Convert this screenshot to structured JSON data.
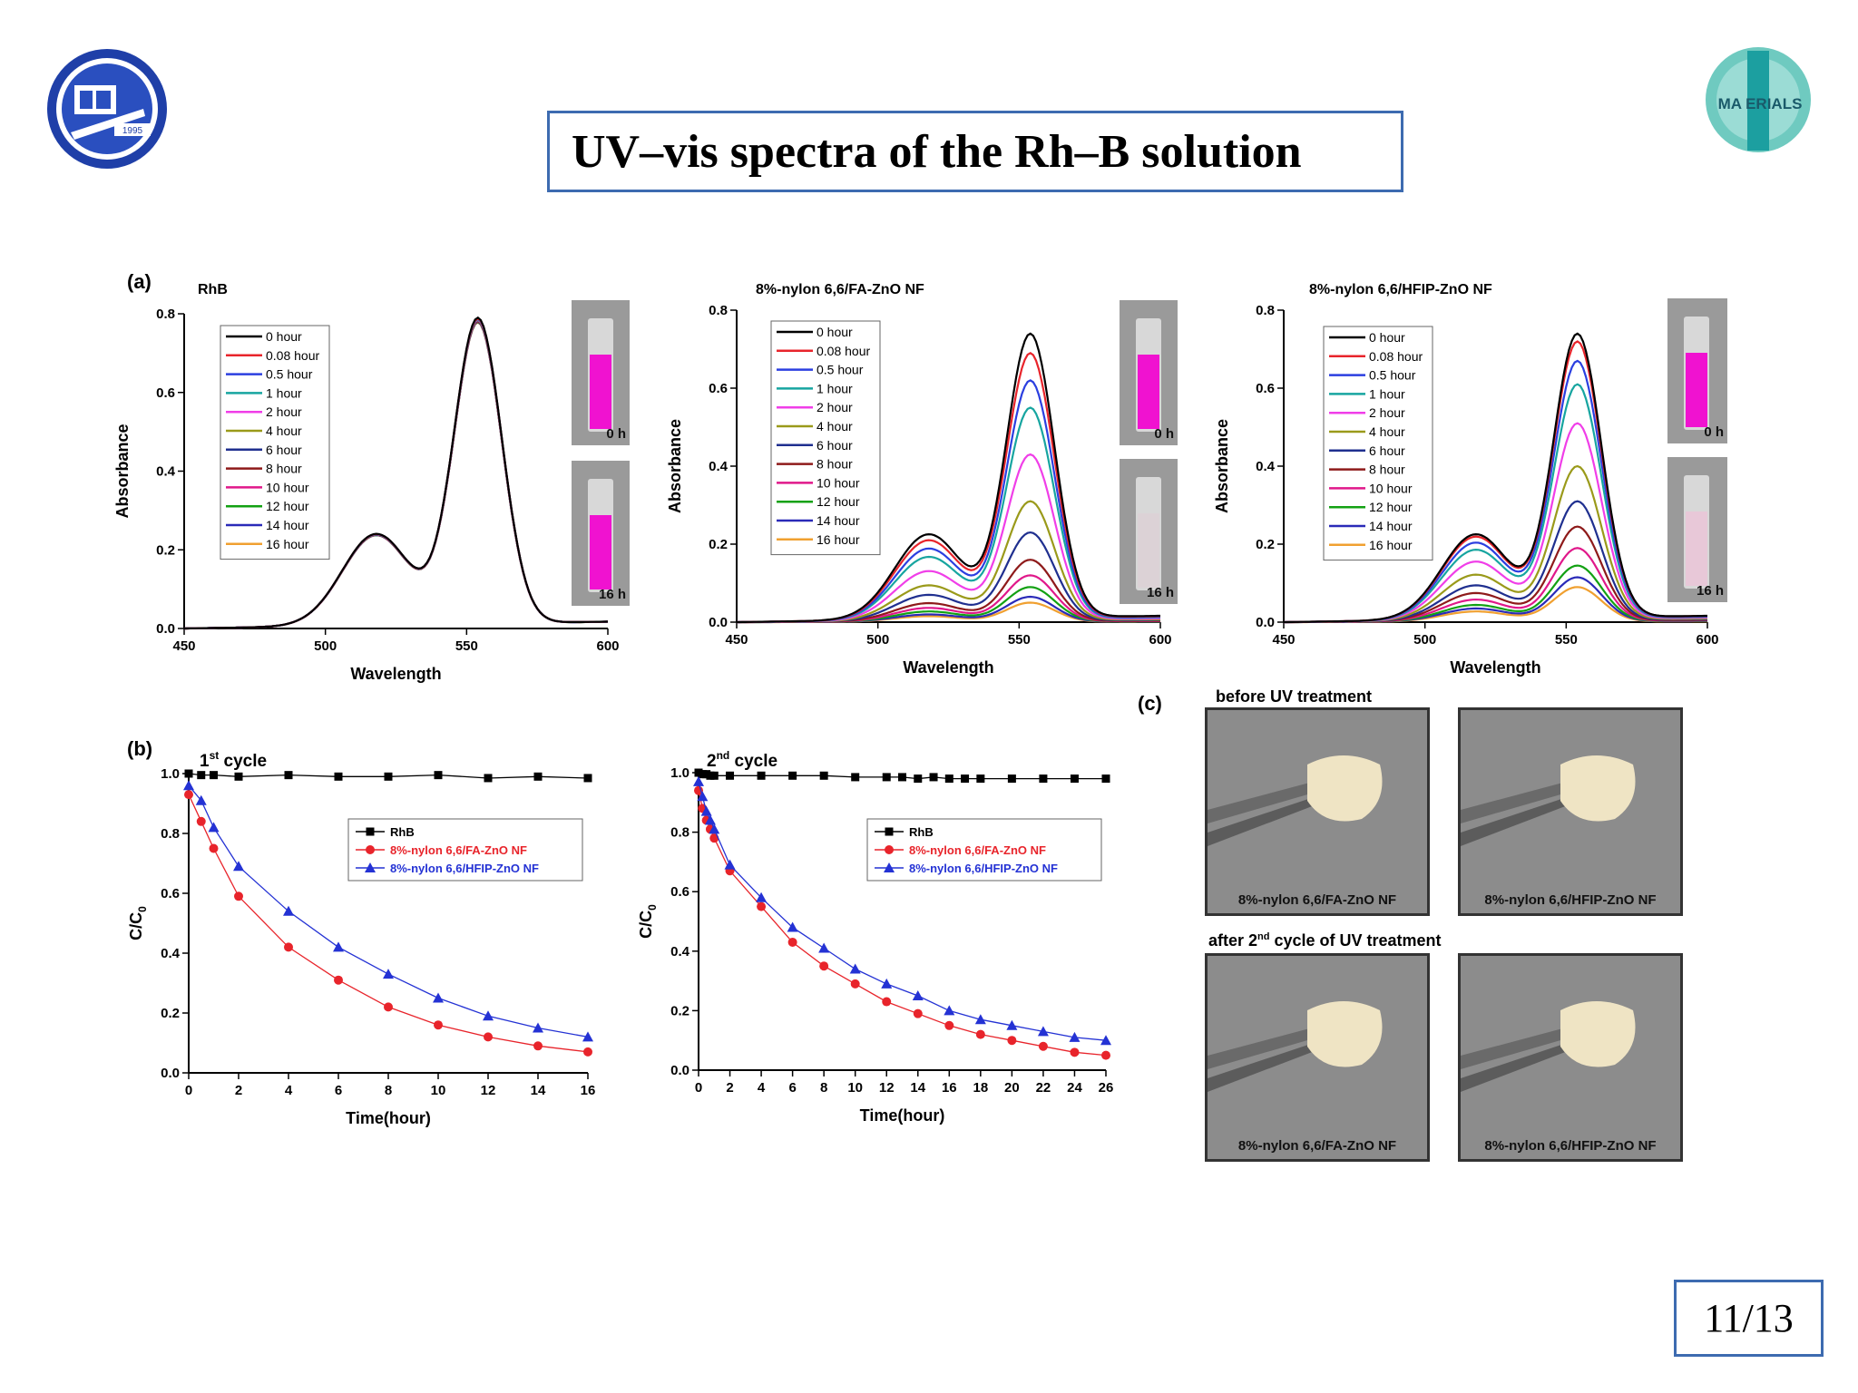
{
  "slide": {
    "title": "UV–vis spectra of the Rh–B solution",
    "page_number": "11/13",
    "logo_right_text": "MA ERIALS",
    "logo_left_year": "1995"
  },
  "panels": {
    "a_letter": "(a)",
    "b_letter": "(b)",
    "c_letter": "(c)"
  },
  "photos": {
    "before_header": "before UV treatment",
    "after_header_prefix": "after 2",
    "after_header_sup": "nd",
    "after_header_suffix": " cycle of UV treatment",
    "labels": [
      "8%-nylon 6,6/FA-ZnO NF",
      "8%-nylon 6,6/HFIP-ZnO NF",
      "8%-nylon 6,6/FA-ZnO NF",
      "8%-nylon 6,6/HFIP-ZnO NF"
    ],
    "vial_labels": [
      "0 h",
      "16 h"
    ]
  },
  "colors": {
    "0 hour": "#000000",
    "0.08 hour": "#e8242b",
    "0.5 hour": "#2b3fe0",
    "1 hour": "#17a5a0",
    "2 hour": "#f03ee8",
    "4 hour": "#9a9a1a",
    "6 hour": "#1f2f8f",
    "8 hour": "#8e1a1a",
    "10 hour": "#e0188a",
    "12 hour": "#13a113",
    "14 hour": "#2a2ab8",
    "16 hour": "#f0a030",
    "RhB": "#000000",
    "FA": "#e8242b",
    "HFIP": "#2432d4"
  },
  "chart_data": [
    {
      "type": "line",
      "title": "RhB",
      "xlabel": "Wavelength",
      "ylabel": "Absorbance",
      "xlim": [
        450,
        600
      ],
      "ylim": [
        0.0,
        0.8
      ],
      "xticks": [
        "450",
        "500",
        "550",
        "600"
      ],
      "yticks": [
        "0.0",
        "0.2",
        "0.4",
        "0.6",
        "0.8"
      ],
      "legend": "top-left",
      "series": [
        {
          "name": "0 hour",
          "peak": 0.79
        },
        {
          "name": "0.08 hour",
          "peak": 0.788
        },
        {
          "name": "0.5 hour",
          "peak": 0.787
        },
        {
          "name": "1 hour",
          "peak": 0.786
        },
        {
          "name": "2 hour",
          "peak": 0.785
        },
        {
          "name": "4 hour",
          "peak": 0.784
        },
        {
          "name": "6 hour",
          "peak": 0.783
        },
        {
          "name": "8 hour",
          "peak": 0.782
        },
        {
          "name": "10 hour",
          "peak": 0.781
        },
        {
          "name": "12 hour",
          "peak": 0.78
        },
        {
          "name": "14 hour",
          "peak": 0.779
        },
        {
          "name": "16 hour",
          "peak": 0.778
        }
      ]
    },
    {
      "type": "line",
      "title": "8%-nylon 6,6/FA-ZnO NF",
      "xlabel": "Wavelength",
      "ylabel": "Absorbance",
      "xlim": [
        450,
        600
      ],
      "ylim": [
        0.0,
        0.8
      ],
      "xticks": [
        "450",
        "500",
        "550",
        "600"
      ],
      "yticks": [
        "0.0",
        "0.2",
        "0.4",
        "0.6",
        "0.8"
      ],
      "legend": "top-left",
      "series": [
        {
          "name": "0 hour",
          "peak": 0.74
        },
        {
          "name": "0.08 hour",
          "peak": 0.69
        },
        {
          "name": "0.5 hour",
          "peak": 0.62
        },
        {
          "name": "1 hour",
          "peak": 0.55
        },
        {
          "name": "2 hour",
          "peak": 0.43
        },
        {
          "name": "4 hour",
          "peak": 0.31
        },
        {
          "name": "6 hour",
          "peak": 0.23
        },
        {
          "name": "8 hour",
          "peak": 0.16
        },
        {
          "name": "10 hour",
          "peak": 0.12
        },
        {
          "name": "12 hour",
          "peak": 0.09
        },
        {
          "name": "14 hour",
          "peak": 0.065
        },
        {
          "name": "16 hour",
          "peak": 0.05
        }
      ]
    },
    {
      "type": "line",
      "title": "8%-nylon 6,6/HFIP-ZnO NF",
      "xlabel": "Wavelength",
      "ylabel": "Absorbance",
      "xlim": [
        450,
        600
      ],
      "ylim": [
        0.0,
        0.8
      ],
      "xticks": [
        "450",
        "500",
        "550",
        "600"
      ],
      "yticks": [
        "0.0",
        "0.2",
        "0.4",
        "0.6",
        "0.8"
      ],
      "legend": "top-left",
      "series": [
        {
          "name": "0 hour",
          "peak": 0.74
        },
        {
          "name": "0.08 hour",
          "peak": 0.72
        },
        {
          "name": "0.5 hour",
          "peak": 0.67
        },
        {
          "name": "1 hour",
          "peak": 0.61
        },
        {
          "name": "2 hour",
          "peak": 0.51
        },
        {
          "name": "4 hour",
          "peak": 0.4
        },
        {
          "name": "6 hour",
          "peak": 0.31
        },
        {
          "name": "8 hour",
          "peak": 0.245
        },
        {
          "name": "10 hour",
          "peak": 0.19
        },
        {
          "name": "12 hour",
          "peak": 0.145
        },
        {
          "name": "14 hour",
          "peak": 0.115
        },
        {
          "name": "16 hour",
          "peak": 0.09
        }
      ]
    },
    {
      "type": "line",
      "title_prefix": "1",
      "title_sup": "st",
      "title_suffix": " cycle",
      "xlabel": "Time(hour)",
      "ylabel_main": "C/C",
      "ylabel_sub": "0",
      "xlim": [
        0,
        16
      ],
      "ylim": [
        0.0,
        1.0
      ],
      "xticks": [
        "0",
        "2",
        "4",
        "6",
        "8",
        "10",
        "12",
        "14",
        "16"
      ],
      "yticks": [
        "0.0",
        "0.2",
        "0.4",
        "0.6",
        "0.8",
        "1.0"
      ],
      "legend": "top-right",
      "series": [
        {
          "name": "RhB",
          "marker": "square",
          "x": [
            0,
            0.5,
            1,
            2,
            4,
            6,
            8,
            10,
            12,
            14,
            16
          ],
          "y": [
            1.0,
            0.995,
            0.995,
            0.99,
            0.995,
            0.99,
            0.99,
            0.995,
            0.985,
            0.99,
            0.985
          ]
        },
        {
          "name": "8%-nylon 6,6/FA-ZnO NF",
          "marker": "circle",
          "x": [
            0,
            0.5,
            1,
            2,
            4,
            6,
            8,
            10,
            12,
            14,
            16
          ],
          "y": [
            0.93,
            0.84,
            0.75,
            0.59,
            0.42,
            0.31,
            0.22,
            0.16,
            0.12,
            0.09,
            0.07
          ]
        },
        {
          "name": "8%-nylon 6,6/HFIP-ZnO NF",
          "marker": "triangle",
          "x": [
            0,
            0.5,
            1,
            2,
            4,
            6,
            8,
            10,
            12,
            14,
            16
          ],
          "y": [
            0.96,
            0.91,
            0.82,
            0.69,
            0.54,
            0.42,
            0.33,
            0.25,
            0.19,
            0.15,
            0.12
          ]
        }
      ]
    },
    {
      "type": "line",
      "title_prefix": "2",
      "title_sup": "nd",
      "title_suffix": " cycle",
      "xlabel": "Time(hour)",
      "ylabel_main": "C/C",
      "ylabel_sub": "0",
      "xlim": [
        0,
        26
      ],
      "ylim": [
        0.0,
        1.0
      ],
      "xticks": [
        "0",
        "2",
        "4",
        "6",
        "8",
        "10",
        "12",
        "14",
        "16",
        "18",
        "20",
        "22",
        "24",
        "26"
      ],
      "yticks": [
        "0.0",
        "0.2",
        "0.4",
        "0.6",
        "0.8",
        "1.0"
      ],
      "legend": "top-right",
      "series": [
        {
          "name": "RhB",
          "marker": "square",
          "x": [
            0,
            0.25,
            0.5,
            0.75,
            1,
            2,
            4,
            6,
            8,
            10,
            12,
            13,
            14,
            15,
            16,
            17,
            18,
            20,
            22,
            24,
            26
          ],
          "y": [
            1.0,
            0.995,
            0.995,
            0.99,
            0.99,
            0.99,
            0.99,
            0.99,
            0.99,
            0.985,
            0.985,
            0.985,
            0.98,
            0.985,
            0.98,
            0.98,
            0.98,
            0.98,
            0.98,
            0.98,
            0.98
          ]
        },
        {
          "name": "8%-nylon 6,6/FA-ZnO NF",
          "marker": "circle",
          "x": [
            0,
            0.25,
            0.5,
            0.75,
            1,
            2,
            4,
            6,
            8,
            10,
            12,
            14,
            16,
            18,
            20,
            22,
            24,
            26
          ],
          "y": [
            0.94,
            0.88,
            0.84,
            0.81,
            0.78,
            0.67,
            0.55,
            0.43,
            0.35,
            0.29,
            0.23,
            0.19,
            0.15,
            0.12,
            0.1,
            0.08,
            0.06,
            0.05
          ]
        },
        {
          "name": "8%-nylon 6,6/HFIP-ZnO NF",
          "marker": "triangle",
          "x": [
            0,
            0.25,
            0.5,
            0.75,
            1,
            2,
            4,
            6,
            8,
            10,
            12,
            14,
            16,
            18,
            20,
            22,
            24,
            26
          ],
          "y": [
            0.97,
            0.92,
            0.87,
            0.84,
            0.81,
            0.69,
            0.58,
            0.48,
            0.41,
            0.34,
            0.29,
            0.25,
            0.2,
            0.17,
            0.15,
            0.13,
            0.11,
            0.1
          ]
        }
      ]
    }
  ]
}
